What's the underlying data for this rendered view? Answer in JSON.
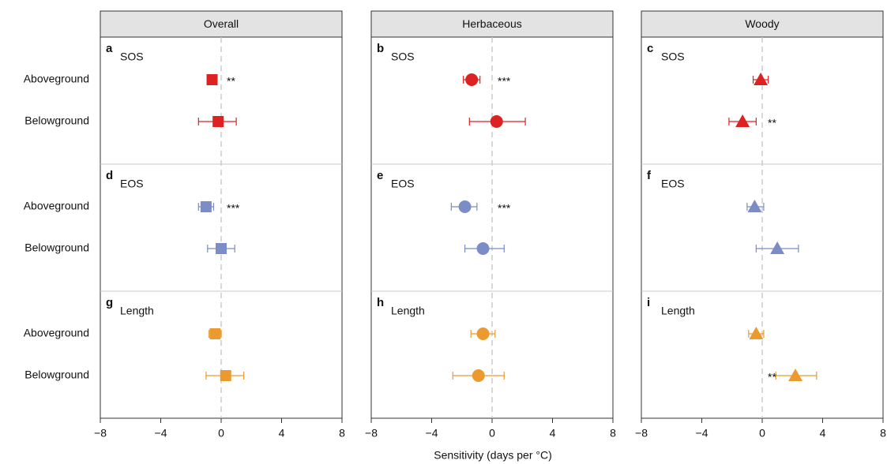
{
  "x_label": "Sensitivity (days per °C)",
  "categories": [
    "Aboveground",
    "Belowground"
  ],
  "chart_data": [
    {
      "type": "dot",
      "title": "Overall",
      "xlim": [
        -8,
        8
      ],
      "xticks": [
        {
          "value": -8,
          "label": "−8"
        },
        {
          "value": -4,
          "label": "−4"
        },
        0,
        4,
        8
      ],
      "groups": [
        {
          "letter": "a",
          "name": "SOS",
          "color": "#dd2222",
          "marker": "square",
          "values": [
            -0.6,
            -0.2
          ],
          "lower": [
            -0.9,
            -1.5
          ],
          "upper": [
            -0.3,
            1.0
          ],
          "significance": [
            "**",
            null
          ]
        },
        {
          "letter": "d",
          "name": "EOS",
          "color": "#7b8cc6",
          "marker": "square",
          "values": [
            -1.0,
            0.0
          ],
          "lower": [
            -1.5,
            -0.9
          ],
          "upper": [
            -0.5,
            0.9
          ],
          "significance": [
            "***",
            null
          ]
        },
        {
          "letter": "g",
          "name": "Length",
          "color": "#eb9a30",
          "marker": "square",
          "values": [
            -0.4,
            0.3
          ],
          "lower": [
            -0.8,
            -1.0
          ],
          "upper": [
            0.0,
            1.5
          ],
          "significance": [
            null,
            null
          ]
        }
      ]
    },
    {
      "type": "dot",
      "title": "Herbaceous",
      "xlim": [
        -8,
        8
      ],
      "xticks": [
        {
          "value": -8,
          "label": "−8"
        },
        {
          "value": -4,
          "label": "−4"
        },
        0,
        4,
        8
      ],
      "groups": [
        {
          "letter": "b",
          "name": "SOS",
          "color": "#dd2222",
          "marker": "circle",
          "values": [
            -1.35,
            0.3
          ],
          "lower": [
            -1.9,
            -1.5
          ],
          "upper": [
            -0.8,
            2.2
          ],
          "significance": [
            "***",
            null
          ]
        },
        {
          "letter": "e",
          "name": "EOS",
          "color": "#7b8cc6",
          "marker": "circle",
          "values": [
            -1.8,
            -0.6
          ],
          "lower": [
            -2.7,
            -1.8
          ],
          "upper": [
            -1.0,
            0.8
          ],
          "significance": [
            "***",
            null
          ]
        },
        {
          "letter": "h",
          "name": "Length",
          "color": "#eb9a30",
          "marker": "circle",
          "values": [
            -0.6,
            -0.9
          ],
          "lower": [
            -1.4,
            -2.6
          ],
          "upper": [
            0.2,
            0.8
          ],
          "significance": [
            null,
            null
          ]
        }
      ]
    },
    {
      "type": "dot",
      "title": "Woody",
      "xlim": [
        -8,
        8
      ],
      "xticks": [
        {
          "value": -8,
          "label": "−8"
        },
        {
          "value": -4,
          "label": "−4"
        },
        0,
        4,
        8
      ],
      "groups": [
        {
          "letter": "c",
          "name": "SOS",
          "color": "#dd2222",
          "marker": "triangle",
          "values": [
            -0.1,
            -1.3
          ],
          "lower": [
            -0.6,
            -2.2
          ],
          "upper": [
            0.4,
            -0.4
          ],
          "significance": [
            null,
            "**"
          ]
        },
        {
          "letter": "f",
          "name": "EOS",
          "color": "#7b8cc6",
          "marker": "triangle",
          "values": [
            -0.5,
            1.0
          ],
          "lower": [
            -1.0,
            -0.4
          ],
          "upper": [
            0.1,
            2.4
          ],
          "significance": [
            null,
            null
          ]
        },
        {
          "letter": "i",
          "name": "Length",
          "color": "#eb9a30",
          "marker": "triangle",
          "values": [
            -0.4,
            2.2
          ],
          "lower": [
            -0.9,
            0.9
          ],
          "upper": [
            0.1,
            3.6
          ],
          "significance": [
            null,
            "**"
          ]
        }
      ]
    }
  ]
}
